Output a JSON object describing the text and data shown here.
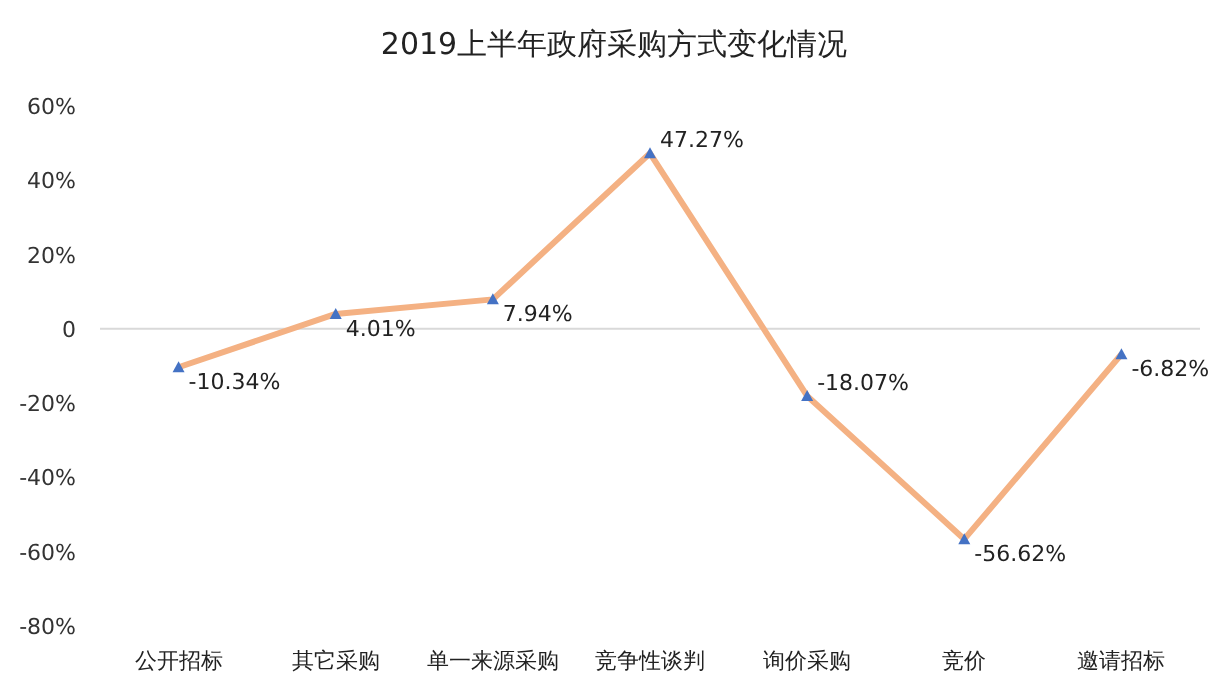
{
  "chart_data": {
    "type": "line",
    "title": "2019上半年政府采购方式变化情况",
    "categories": [
      "公开招标",
      "其它采购",
      "单一来源采购",
      "竞争性谈判",
      "询价采购",
      "竞价",
      "邀请招标"
    ],
    "series": [
      {
        "color": "#f4b183",
        "values": [
          -10.34,
          4.01,
          7.94,
          47.27,
          -18.07,
          -56.62,
          -6.82
        ],
        "value_labels": [
          "-10.34%",
          "4.01%",
          "7.94%",
          "47.27%",
          "-18.07%",
          "-56.62%",
          "-6.82%"
        ]
      }
    ],
    "ylim": [
      -80,
      60
    ],
    "yticks": [
      {
        "value": -80,
        "label": "-80%"
      },
      {
        "value": -60,
        "label": "-60%"
      },
      {
        "value": -40,
        "label": "-40%"
      },
      {
        "value": -20,
        "label": "-20%"
      },
      {
        "value": 0,
        "label": "0"
      },
      {
        "value": 20,
        "label": "20%"
      },
      {
        "value": 40,
        "label": "40%"
      },
      {
        "value": 60,
        "label": "60%"
      }
    ],
    "marker": "triangle"
  }
}
